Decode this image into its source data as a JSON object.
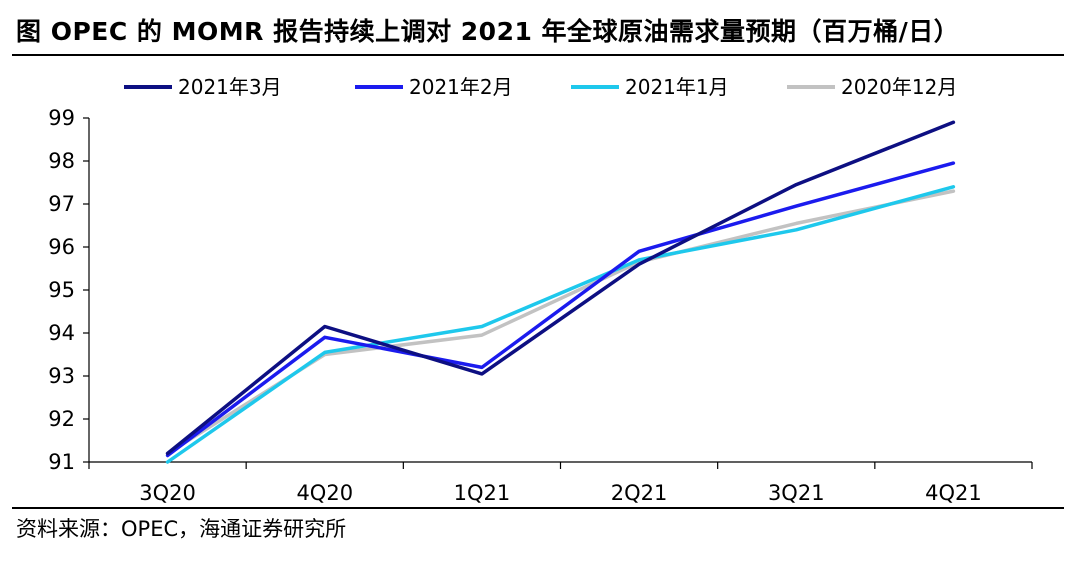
{
  "title": "图  OPEC 的 MOMR 报告持续上调对 2021 年全球原油需求量预期（百万桶/日）",
  "source": "资料来源：OPEC，海通证券研究所",
  "chart_data": {
    "type": "line",
    "categories": [
      "3Q20",
      "4Q20",
      "1Q21",
      "2Q21",
      "3Q21",
      "4Q21"
    ],
    "ylim": [
      91,
      99
    ],
    "yticks": [
      91,
      92,
      93,
      94,
      95,
      96,
      97,
      98,
      99
    ],
    "legend_position": "top",
    "grid": false,
    "series": [
      {
        "name": "2021年3月",
        "color": "#0d0f82",
        "values": [
          91.2,
          94.15,
          93.05,
          95.6,
          97.45,
          98.9
        ]
      },
      {
        "name": "2021年2月",
        "color": "#1b1bee",
        "values": [
          91.15,
          93.9,
          93.2,
          95.9,
          96.95,
          97.95
        ]
      },
      {
        "name": "2021年1月",
        "color": "#1ec8ec",
        "values": [
          91.0,
          93.55,
          94.15,
          95.7,
          96.4,
          97.4
        ]
      },
      {
        "name": "2020年12月",
        "color": "#c2c2c2",
        "values": [
          91.2,
          93.5,
          93.95,
          95.65,
          96.55,
          97.3
        ]
      }
    ]
  }
}
